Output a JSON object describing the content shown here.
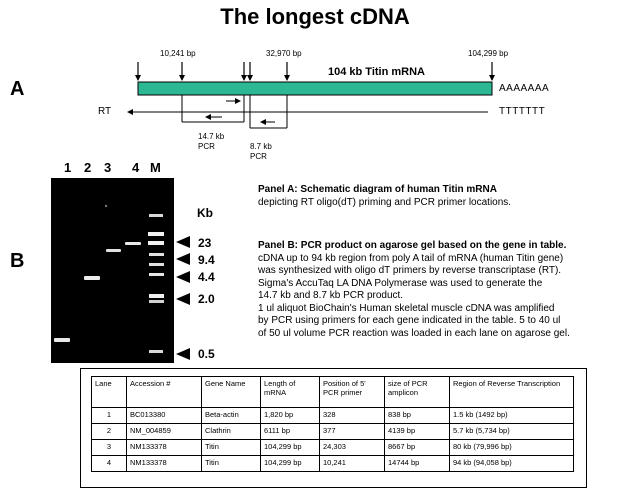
{
  "title": "The longest cDNA",
  "panel_a": {
    "letter": "A",
    "mrna_label": "104 kb Titin mRNA",
    "poly_a": "AAAAAAA",
    "rt_label": "RT",
    "poly_t": "TTTTTTT",
    "positions": [
      "10,241 bp",
      "32,970 bp",
      "104,299 bp"
    ],
    "pcr_products": [
      {
        "size": "14.7 kb",
        "label": "PCR"
      },
      {
        "size": "8.7 kb",
        "label": "PCR"
      }
    ],
    "colors": {
      "mrna": "#2db894"
    }
  },
  "panel_b": {
    "letter": "B",
    "lanes": [
      "1",
      "2",
      "3",
      "4",
      "M"
    ],
    "kb_label": "Kb",
    "ladder": [
      "23",
      "9.4",
      "4.4",
      "2.0",
      "0.5"
    ]
  },
  "descriptions": {
    "panel_a_title": "Panel A: Schematic diagram of human Titin mRNA",
    "panel_a_lines": [
      "depicting RT oligo(dT) priming and PCR primer locations."
    ],
    "panel_b_title": "Panel B: PCR product on agarose gel based on the gene in table.",
    "panel_b_lines": [
      "cDNA up to 94 kb region from poly A tail of mRNA (human Titin gene)",
      "was synthesized with oligo dT primers by reverse transcriptase (RT).",
      "Sigma's AccuTaq LA DNA Polymerase was used to generate the",
      "14.7 kb and 8.7 kb PCR product.",
      "1 ul aliquot BioChain's Human skeletal muscle cDNA was amplified",
      "by PCR using primers for each gene indicated in the table.  5 to 40 ul",
      "of 50 ul volume PCR reaction was loaded in each lane on agarose gel."
    ]
  },
  "table": {
    "headers": [
      "Lane",
      "Accession #",
      "Gene Name",
      "Length of mRNA",
      "Position of 5' PCR primer",
      "size of PCR amplicon",
      "Region of Reverse Transcription"
    ],
    "rows": [
      [
        "1",
        "BC013380",
        "Beta-actin",
        "1,820 bp",
        "328",
        "838 bp",
        "1.5 kb (1492 bp)"
      ],
      [
        "2",
        "NM_004859",
        "Clathrin",
        "6111 bp",
        "377",
        "4139 bp",
        "5.7 kb (5,734 bp)"
      ],
      [
        "3",
        "NM133378",
        "Titin",
        "104,299 bp",
        "24,303",
        "8667 bp",
        "80 kb (79,996 bp)"
      ],
      [
        "4",
        "NM133378",
        "Titin",
        "104,299 bp",
        "10,241",
        "14744 bp",
        "94 kb (94,058 bp)"
      ]
    ]
  }
}
